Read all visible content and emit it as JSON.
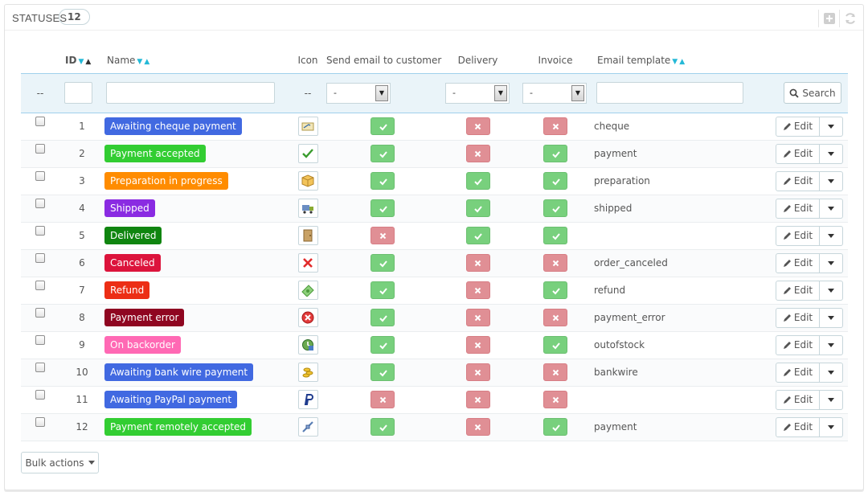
{
  "header": {
    "title": "STATUSES",
    "count": "12"
  },
  "columns": {
    "id": "ID",
    "name": "Name",
    "icon": "Icon",
    "send_email": "Send email to customer",
    "delivery": "Delivery",
    "invoice": "Invoice",
    "email_template": "Email template"
  },
  "filters": {
    "dash": "--",
    "select_value": "-",
    "search_label": "Search"
  },
  "rows": [
    {
      "id": "1",
      "name": "Awaiting cheque payment",
      "color": "#4169e1",
      "icon": "cheque-icon",
      "send_email": true,
      "delivery": false,
      "invoice": false,
      "template": "cheque"
    },
    {
      "id": "2",
      "name": "Payment accepted",
      "color": "#32cd32",
      "icon": "checkmark-icon",
      "send_email": true,
      "delivery": false,
      "invoice": true,
      "template": "payment"
    },
    {
      "id": "3",
      "name": "Preparation in progress",
      "color": "#ff8c00",
      "icon": "package-icon",
      "send_email": true,
      "delivery": true,
      "invoice": true,
      "template": "preparation"
    },
    {
      "id": "4",
      "name": "Shipped",
      "color": "#8a2be2",
      "icon": "truck-icon",
      "send_email": true,
      "delivery": true,
      "invoice": true,
      "template": "shipped"
    },
    {
      "id": "5",
      "name": "Delivered",
      "color": "#108510",
      "icon": "door-icon",
      "send_email": false,
      "delivery": true,
      "invoice": true,
      "template": ""
    },
    {
      "id": "6",
      "name": "Canceled",
      "color": "#dc143c",
      "icon": "cross-icon",
      "send_email": true,
      "delivery": false,
      "invoice": false,
      "template": "order_canceled"
    },
    {
      "id": "7",
      "name": "Refund",
      "color": "#ec2e15",
      "icon": "money-icon",
      "send_email": true,
      "delivery": false,
      "invoice": true,
      "template": "refund"
    },
    {
      "id": "8",
      "name": "Payment error",
      "color": "#8f0621",
      "icon": "error-icon",
      "send_email": true,
      "delivery": false,
      "invoice": false,
      "template": "payment_error"
    },
    {
      "id": "9",
      "name": "On backorder",
      "color": "#ff69b4",
      "icon": "backorder-icon",
      "send_email": true,
      "delivery": false,
      "invoice": true,
      "template": "outofstock"
    },
    {
      "id": "10",
      "name": "Awaiting bank wire payment",
      "color": "#4169e1",
      "icon": "coins-icon",
      "send_email": true,
      "delivery": false,
      "invoice": false,
      "template": "bankwire"
    },
    {
      "id": "11",
      "name": "Awaiting PayPal payment",
      "color": "#4169e1",
      "icon": "paypal-icon",
      "send_email": false,
      "delivery": false,
      "invoice": false,
      "template": ""
    },
    {
      "id": "12",
      "name": "Payment remotely accepted",
      "color": "#32cd32",
      "icon": "remote-payment-icon",
      "send_email": true,
      "delivery": false,
      "invoice": true,
      "template": "payment"
    }
  ],
  "row_action": "Edit",
  "footer": {
    "bulk_actions": "Bulk actions"
  }
}
